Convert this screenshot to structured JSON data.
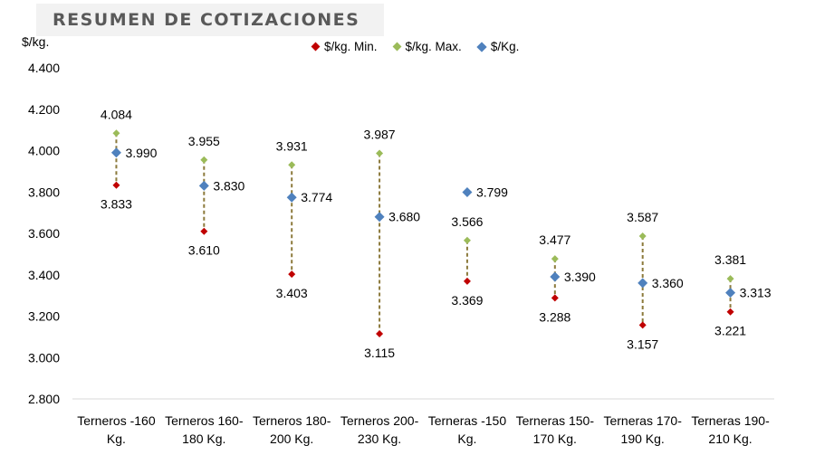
{
  "title": "RESUMEN DE COTIZACIONES",
  "chart_data": {
    "type": "scatter",
    "ylabel": "$/kg.",
    "ylim": [
      2800,
      4400
    ],
    "yticks": [
      "2.800",
      "3.000",
      "3.200",
      "3.400",
      "3.600",
      "3.800",
      "4.000",
      "4.200",
      "4.400"
    ],
    "categories": [
      [
        "Terneros -160",
        "Kg."
      ],
      [
        "Terneros 160-",
        "180 Kg."
      ],
      [
        "Terneros 180-",
        "200 Kg."
      ],
      [
        "Terneros 200-",
        "230 Kg."
      ],
      [
        "Terneras -150",
        "Kg."
      ],
      [
        "Terneras 150-",
        "170 Kg."
      ],
      [
        "Terneras 170-",
        "190 Kg."
      ],
      [
        "Terneras 190-",
        "210 Kg."
      ]
    ],
    "series": [
      {
        "name": "$/kg. Min.",
        "color": "#c00000",
        "values": [
          3833,
          3610,
          3403,
          3115,
          3369,
          3288,
          3157,
          3221
        ],
        "labels": [
          "3.833",
          "3.610",
          "3.403",
          "3.115",
          "3.369",
          "3.288",
          "3.157",
          "3.221"
        ]
      },
      {
        "name": "$/kg. Max.",
        "color": "#9bbb59",
        "values": [
          4084,
          3955,
          3931,
          3987,
          3566,
          3477,
          3587,
          3381
        ],
        "labels": [
          "4.084",
          "3.955",
          "3.931",
          "3.987",
          "3.566",
          "3.477",
          "3.587",
          "3.381"
        ]
      },
      {
        "name": "$/Kg.",
        "color": "#4f81bd",
        "values": [
          3990,
          3830,
          3774,
          3680,
          3799,
          3390,
          3360,
          3313
        ],
        "labels": [
          "3.990",
          "3.830",
          "3.774",
          "3.680",
          "3.799",
          "3.390",
          "3.360",
          "3.313"
        ]
      }
    ],
    "range_line_color": "#8c7a3c",
    "legend_position": "top",
    "grid": false
  }
}
